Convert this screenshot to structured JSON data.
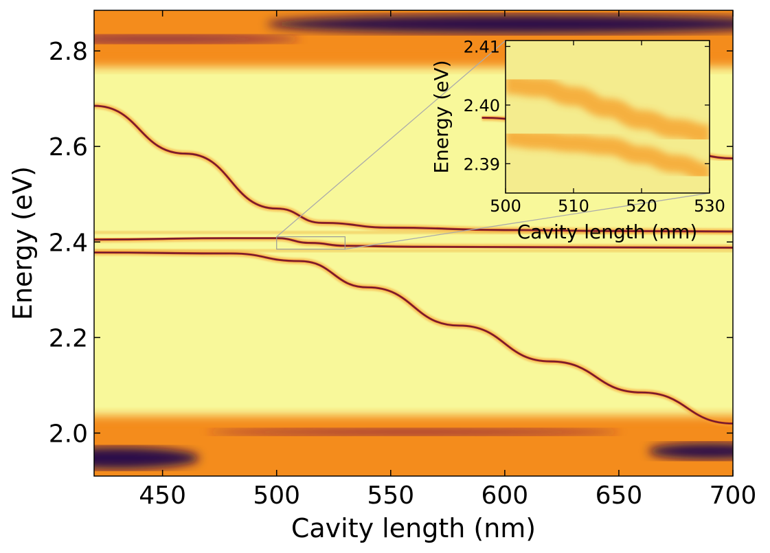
{
  "chart_data": [
    {
      "type": "heatmap",
      "title": "",
      "xlabel": "Cavity length (nm)",
      "ylabel": "Energy (eV)",
      "xlim": [
        420,
        700
      ],
      "ylim": [
        1.91,
        2.885
      ],
      "xticks": [
        450,
        500,
        550,
        600,
        650,
        700
      ],
      "yticks": [
        2.0,
        2.2,
        2.4,
        2.6,
        2.8
      ],
      "ytick_format": 1,
      "colormap": "inferno",
      "colors": {
        "background": "#f8f89a",
        "band": "#f48c1c",
        "dark": "#2a0c48",
        "line": "#b8321c"
      },
      "features": {
        "top_band_center_eV": 2.845,
        "bottom_band_center_eV": 1.965,
        "exciton_lines_eV": [
          2.42,
          2.382
        ],
        "upper_polariton": {
          "x": [
            420,
            460,
            500,
            520,
            550,
            600,
            650,
            700
          ],
          "y": [
            2.685,
            2.585,
            2.47,
            2.44,
            2.43,
            2.425,
            2.423,
            2.422
          ]
        },
        "middle_polariton": {
          "x": [
            420,
            480,
            500,
            515,
            530,
            560,
            620,
            700
          ],
          "y": [
            2.405,
            2.408,
            2.408,
            2.398,
            2.392,
            2.39,
            2.389,
            2.388
          ]
        },
        "lower_polariton": {
          "x": [
            420,
            480,
            510,
            540,
            580,
            620,
            660,
            700
          ],
          "y": [
            2.378,
            2.376,
            2.36,
            2.305,
            2.225,
            2.15,
            2.085,
            2.02
          ]
        },
        "cavity_mode_upper": {
          "x": [
            590,
            620,
            660,
            700
          ],
          "y": [
            2.66,
            2.65,
            2.62,
            2.575
          ]
        }
      },
      "zoom_box": {
        "x": [
          500,
          530
        ],
        "y": [
          2.385,
          2.411
        ]
      }
    },
    {
      "type": "heatmap",
      "title": "",
      "xlabel": "Cavity length (nm)",
      "ylabel": "Energy (eV)",
      "xlim": [
        500,
        530
      ],
      "ylim": [
        2.385,
        2.411
      ],
      "xticks": [
        500,
        510,
        520,
        530
      ],
      "yticks": [
        2.39,
        2.4,
        2.41
      ],
      "ytick_format": 2,
      "colormap": "inferno",
      "colors": {
        "background": "#f4ec8e",
        "band": "#f6a630"
      },
      "features": {
        "upper_branch": {
          "x": [
            500,
            505,
            510,
            515,
            520,
            525,
            530
          ],
          "y": [
            2.4035,
            2.403,
            2.4015,
            2.3995,
            2.3975,
            2.396,
            2.395
          ]
        },
        "lower_branch": {
          "x": [
            500,
            505,
            510,
            515,
            520,
            525,
            530
          ],
          "y": [
            2.3945,
            2.394,
            2.3935,
            2.393,
            2.3915,
            2.39,
            2.3885
          ]
        }
      }
    }
  ]
}
